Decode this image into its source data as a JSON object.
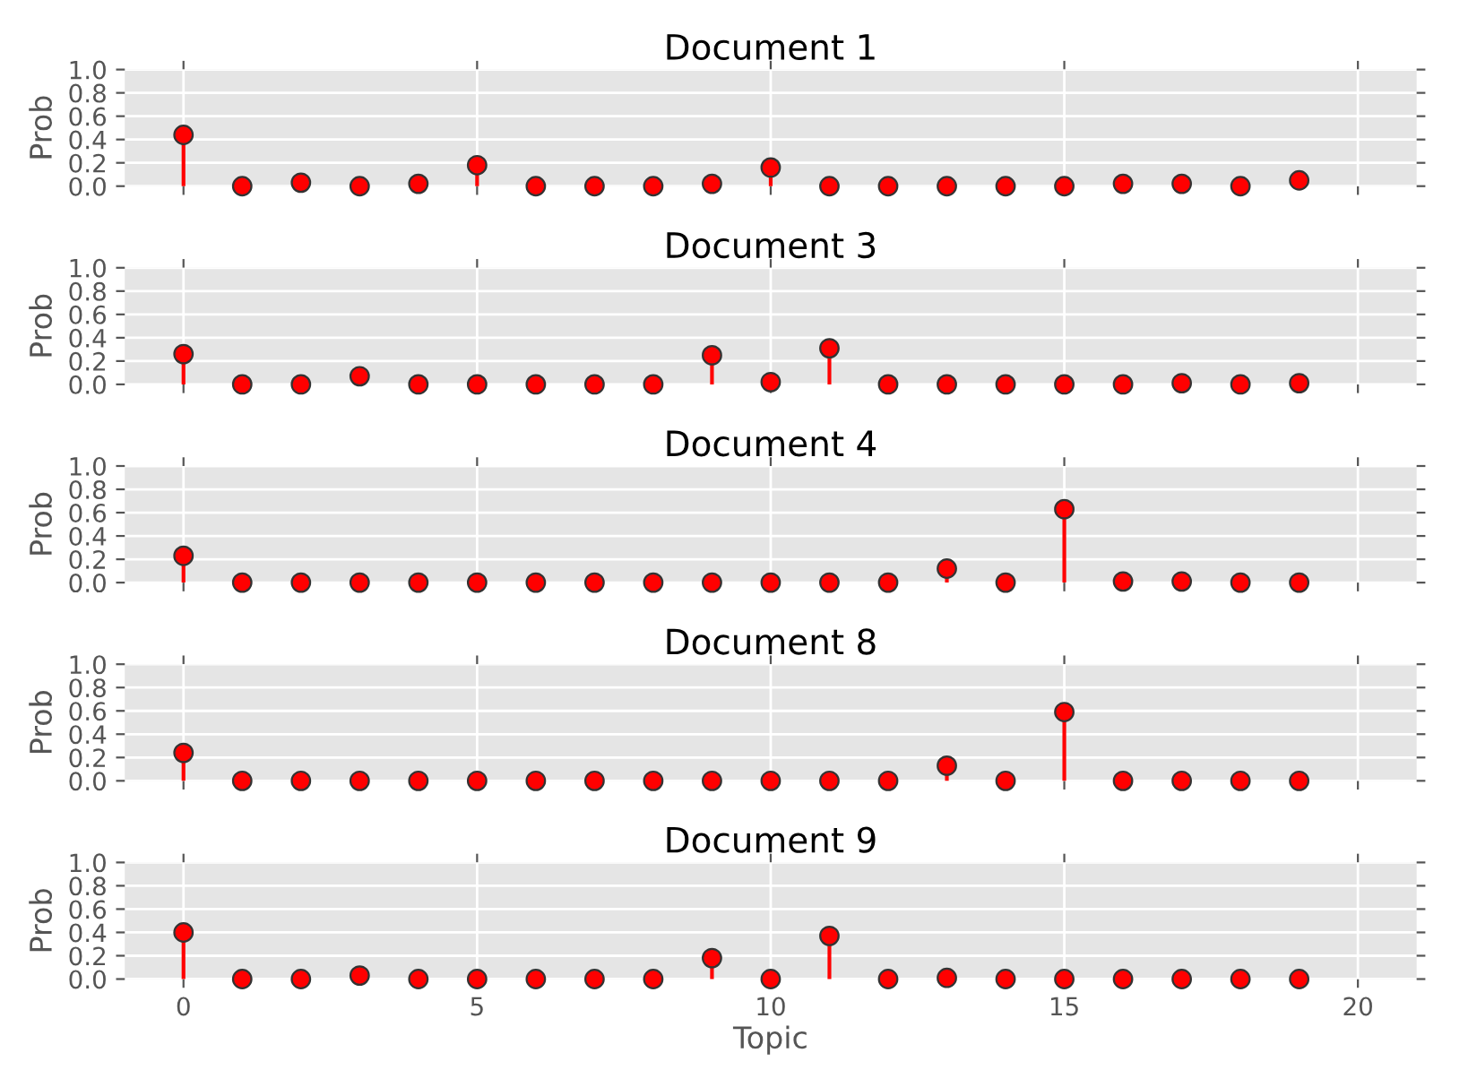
{
  "chart_data": [
    {
      "type": "lollipop",
      "title": "Document 1",
      "ylabel": "Prob",
      "x": [
        0,
        1,
        2,
        3,
        4,
        5,
        6,
        7,
        8,
        9,
        10,
        11,
        12,
        13,
        14,
        15,
        16,
        17,
        18,
        19
      ],
      "color": "#ff0000",
      "marker": "circle",
      "grid": true,
      "xlim": [
        -1,
        21
      ],
      "xticks": [
        0,
        5,
        10,
        15,
        20
      ],
      "ylim": [
        0,
        1.0
      ],
      "yticks": [
        {
          "value": 0,
          "label": "0.0"
        },
        {
          "value": 0.2,
          "label": "0.2"
        },
        {
          "value": 0.4,
          "label": "0.4"
        },
        {
          "value": 0.6,
          "label": "0.6"
        },
        {
          "value": 0.8,
          "label": "0.8"
        },
        {
          "value": 1.0,
          "label": "1.0"
        }
      ],
      "tick_labels": "y",
      "values": [
        0.44,
        0,
        0.03,
        0,
        0.02,
        0.18,
        0,
        0,
        0,
        0.02,
        0.16,
        0,
        0,
        0,
        0,
        0,
        0.02,
        0.02,
        0,
        0.05
      ]
    },
    {
      "type": "lollipop",
      "title": "Document 3",
      "ylabel": "Prob",
      "x": [
        0,
        1,
        2,
        3,
        4,
        5,
        6,
        7,
        8,
        9,
        10,
        11,
        12,
        13,
        14,
        15,
        16,
        17,
        18,
        19
      ],
      "color": "#ff0000",
      "marker": "circle",
      "grid": true,
      "xlim": [
        -1,
        21
      ],
      "xticks": [
        0,
        5,
        10,
        15,
        20
      ],
      "ylim": [
        0,
        1.0
      ],
      "yticks": [
        {
          "value": 0,
          "label": "0.0"
        },
        {
          "value": 0.2,
          "label": "0.2"
        },
        {
          "value": 0.4,
          "label": "0.4"
        },
        {
          "value": 0.6,
          "label": "0.6"
        },
        {
          "value": 0.8,
          "label": "0.8"
        },
        {
          "value": 1.0,
          "label": "1.0"
        }
      ],
      "tick_labels": "y",
      "values": [
        0.26,
        0,
        0,
        0.07,
        0,
        0,
        0,
        0,
        0,
        0.25,
        0.02,
        0.31,
        0,
        0,
        0,
        0,
        0,
        0.01,
        0,
        0.01
      ]
    },
    {
      "type": "lollipop",
      "title": "Document 4",
      "ylabel": "Prob",
      "x": [
        0,
        1,
        2,
        3,
        4,
        5,
        6,
        7,
        8,
        9,
        10,
        11,
        12,
        13,
        14,
        15,
        16,
        17,
        18,
        19
      ],
      "color": "#ff0000",
      "marker": "circle",
      "grid": true,
      "xlim": [
        -1,
        21
      ],
      "xticks": [
        0,
        5,
        10,
        15,
        20
      ],
      "ylim": [
        0,
        1.0
      ],
      "yticks": [
        {
          "value": 0,
          "label": "0.0"
        },
        {
          "value": 0.2,
          "label": "0.2"
        },
        {
          "value": 0.4,
          "label": "0.4"
        },
        {
          "value": 0.6,
          "label": "0.6"
        },
        {
          "value": 0.8,
          "label": "0.8"
        },
        {
          "value": 1.0,
          "label": "1.0"
        }
      ],
      "tick_labels": "y",
      "values": [
        0.23,
        0,
        0,
        0,
        0,
        0,
        0,
        0,
        0,
        0,
        0,
        0,
        0,
        0.12,
        0,
        0.63,
        0.01,
        0.01,
        0,
        0
      ]
    },
    {
      "type": "lollipop",
      "title": "Document 8",
      "ylabel": "Prob",
      "x": [
        0,
        1,
        2,
        3,
        4,
        5,
        6,
        7,
        8,
        9,
        10,
        11,
        12,
        13,
        14,
        15,
        16,
        17,
        18,
        19
      ],
      "color": "#ff0000",
      "marker": "circle",
      "grid": true,
      "xlim": [
        -1,
        21
      ],
      "xticks": [
        0,
        5,
        10,
        15,
        20
      ],
      "ylim": [
        0,
        1.0
      ],
      "yticks": [
        {
          "value": 0,
          "label": "0.0"
        },
        {
          "value": 0.2,
          "label": "0.2"
        },
        {
          "value": 0.4,
          "label": "0.4"
        },
        {
          "value": 0.6,
          "label": "0.6"
        },
        {
          "value": 0.8,
          "label": "0.8"
        },
        {
          "value": 1.0,
          "label": "1.0"
        }
      ],
      "tick_labels": "y",
      "values": [
        0.24,
        0,
        0,
        0,
        0,
        0,
        0,
        0,
        0,
        0,
        0,
        0,
        0,
        0.13,
        0,
        0.59,
        0,
        0,
        0,
        0
      ]
    },
    {
      "type": "lollipop",
      "title": "Document 9",
      "ylabel": "Prob",
      "xlabel": "Topic",
      "x": [
        0,
        1,
        2,
        3,
        4,
        5,
        6,
        7,
        8,
        9,
        10,
        11,
        12,
        13,
        14,
        15,
        16,
        17,
        18,
        19
      ],
      "color": "#ff0000",
      "marker": "circle",
      "grid": true,
      "xlim": [
        -1,
        21
      ],
      "xticks": [
        0,
        5,
        10,
        15,
        20
      ],
      "ylim": [
        0,
        1.0
      ],
      "yticks": [
        {
          "value": 0,
          "label": "0.0"
        },
        {
          "value": 0.2,
          "label": "0.2"
        },
        {
          "value": 0.4,
          "label": "0.4"
        },
        {
          "value": 0.6,
          "label": "0.6"
        },
        {
          "value": 0.8,
          "label": "0.8"
        },
        {
          "value": 1.0,
          "label": "1.0"
        }
      ],
      "values": [
        0.4,
        0,
        0,
        0.03,
        0,
        0,
        0,
        0,
        0,
        0.18,
        0,
        0.37,
        0,
        0.01,
        0,
        0,
        0,
        0,
        0,
        0
      ]
    }
  ]
}
